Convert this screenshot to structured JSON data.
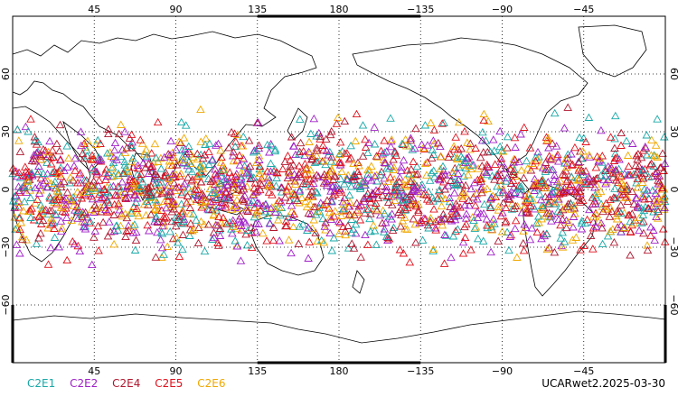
{
  "chart_data": {
    "type": "scatter",
    "projection": "cylindrical-equidistant",
    "central_longitude": 0,
    "xlim": [
      0,
      360
    ],
    "ylim": [
      -90,
      90
    ],
    "grid": true,
    "grid_style": "dotted",
    "lon_ticks": [
      45,
      90,
      135,
      180,
      -135,
      -90,
      -45
    ],
    "lon_tick_labels": [
      "45",
      "90",
      "135",
      "180",
      "−135",
      "−90",
      "−45"
    ],
    "lat_ticks": [
      60,
      30,
      0,
      -30,
      -60
    ],
    "lat_tick_labels": [
      "60",
      "30",
      "0",
      "−30",
      "−60"
    ],
    "marker": "triangle",
    "series": [
      {
        "name": "C2E1",
        "color": "#1aa8a8"
      },
      {
        "name": "C2E2",
        "color": "#a020c8"
      },
      {
        "name": "C2E4",
        "color": "#b01830"
      },
      {
        "name": "C2E5",
        "color": "#e0101c"
      },
      {
        "name": "C2E6",
        "color": "#f0a800"
      }
    ],
    "occultation_band_lat": [
      -45,
      45
    ],
    "timestamp_label": "UCARwet2.2025-03-30"
  }
}
